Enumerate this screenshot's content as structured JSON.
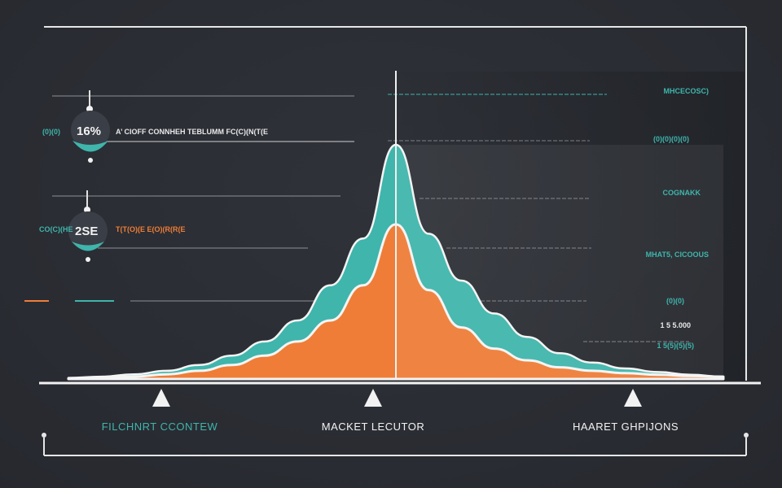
{
  "chart_data": {
    "type": "area",
    "title": "",
    "xlabel": "",
    "ylabel": "",
    "categories": [
      "FILCHNRT CCONTEW",
      "MACKET LECUTOR",
      "HAARET GHPIJONS"
    ],
    "x": [
      0,
      5,
      10,
      15,
      20,
      25,
      30,
      35,
      40,
      45,
      50,
      55,
      60,
      65,
      70,
      75,
      80,
      85,
      90,
      95,
      100
    ],
    "xlim": [
      0,
      100
    ],
    "ylim": [
      0,
      100
    ],
    "peak_x": 50,
    "grid": false,
    "legend": "none",
    "series": [
      {
        "color": "#3fb5ac",
        "values": [
          0.5,
          1,
          2,
          3.5,
          6,
          10,
          16,
          25,
          40,
          60,
          100,
          62,
          42,
          28,
          18,
          11,
          7,
          4.5,
          3,
          1.8,
          1
        ]
      },
      {
        "color": "#ef7d37",
        "values": [
          0.2,
          0.5,
          1,
          2,
          3.5,
          6,
          10,
          16,
          25,
          40,
          66,
          38,
          22,
          13,
          8,
          5,
          3.5,
          2.5,
          1.8,
          1.3,
          1
        ]
      }
    ],
    "annotations": {
      "left": [
        {
          "text": "(0)(0)",
          "color": "#3fb5ac"
        },
        {
          "text": "A’ CIOFF CONNHEH TEBLUMM FC(C)(N(T(E",
          "color": "#e8e8e8"
        },
        {
          "text": "CO(C)(HE",
          "color": "#3fb5ac"
        },
        {
          "text": "T(T(O)(E E(O)(R(R(E",
          "color": "#ef7d37"
        }
      ],
      "badges": [
        "16%",
        "2SE"
      ],
      "right": [
        {
          "text": "MHCECOSC)",
          "color": "#3fb5ac"
        },
        {
          "text": "(0)(0)(0)(0)",
          "color": "#3fb5ac"
        },
        {
          "text": "COGNAKK",
          "color": "#3fb5ac"
        },
        {
          "text": "MHAT5, CICOOUS",
          "color": "#3fb5ac"
        },
        {
          "text": "(0)(0)",
          "color": "#3fb5ac"
        },
        {
          "text": "1 5 5.000",
          "color": "#e8e8e8"
        },
        {
          "text": "1 5(5)(5)(5)",
          "color": "#3fb5ac"
        }
      ]
    }
  }
}
